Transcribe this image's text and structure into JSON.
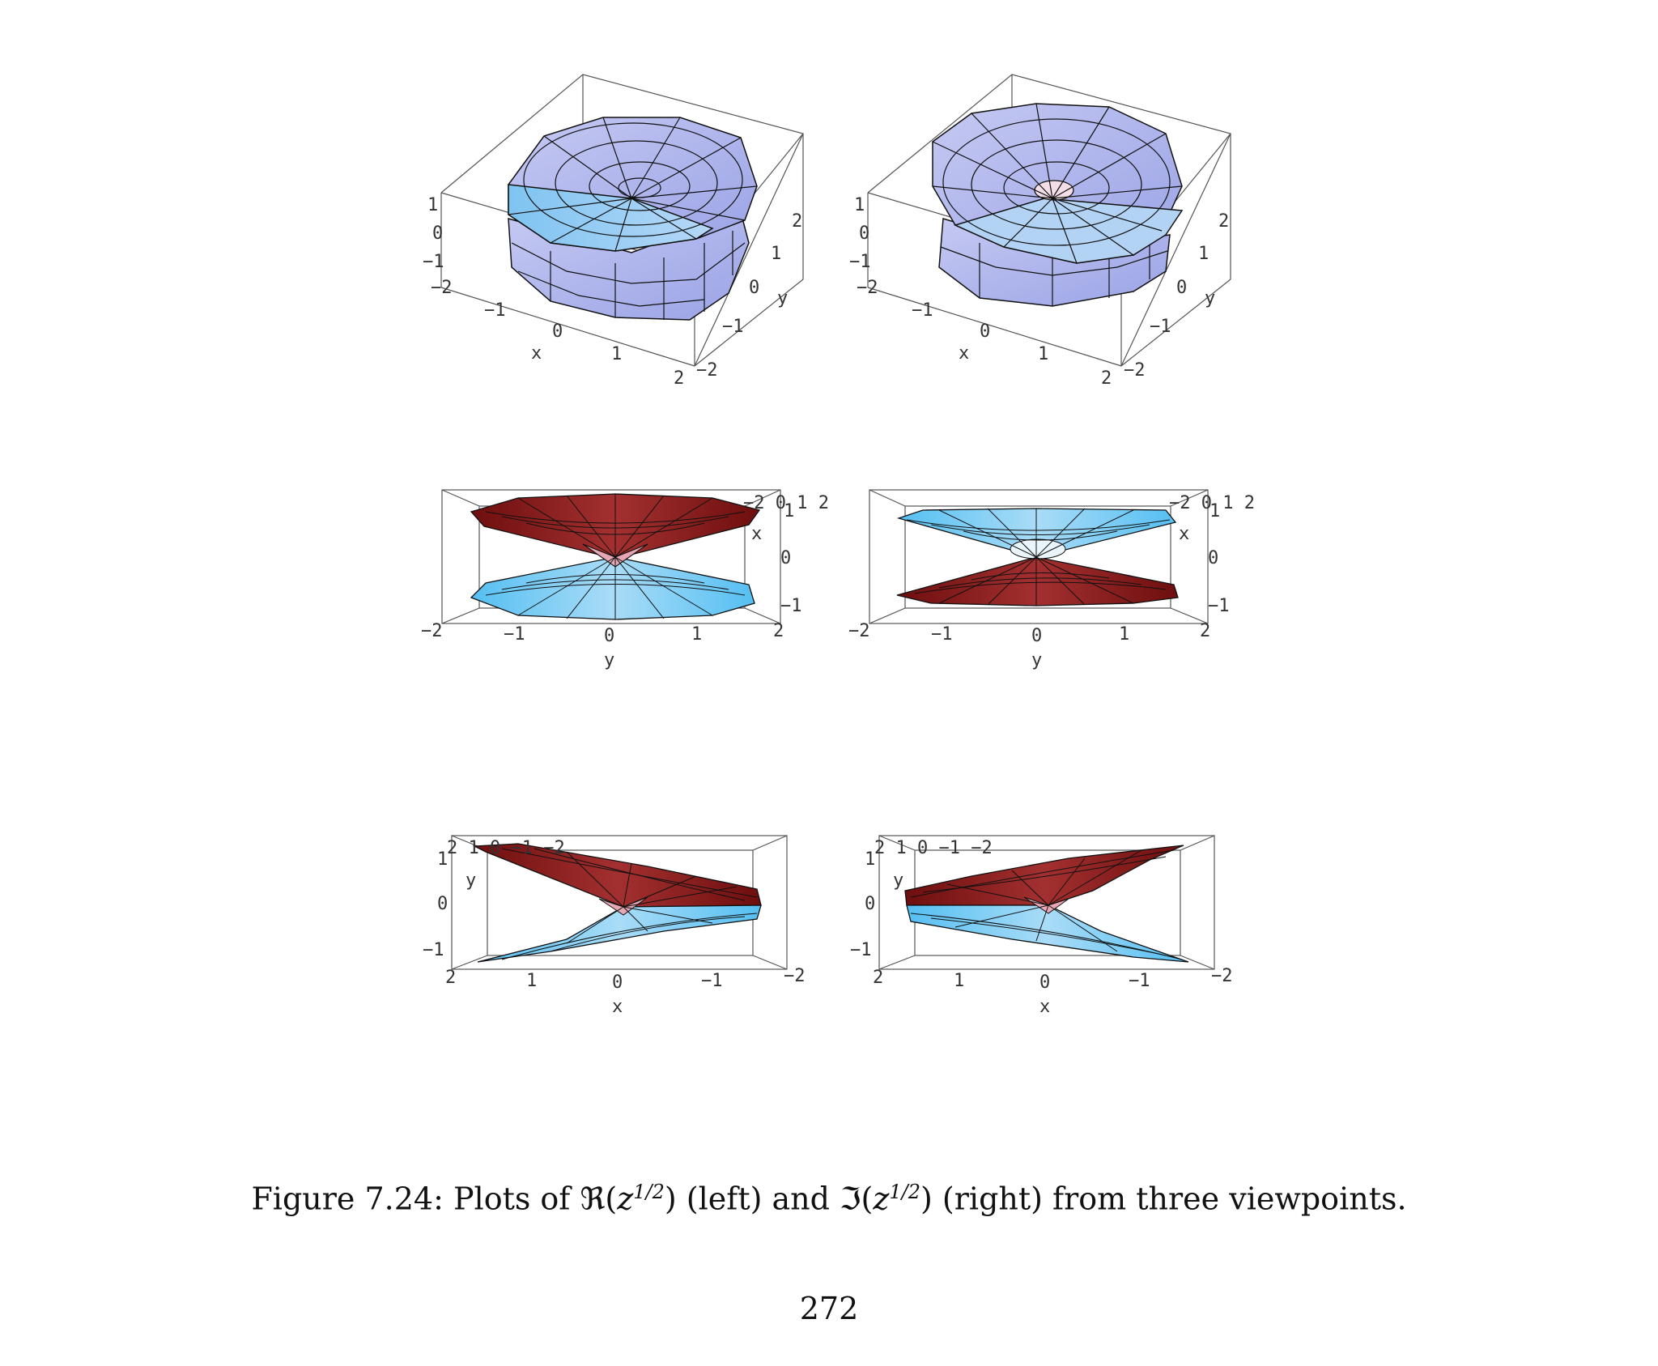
{
  "figure": {
    "panels": [
      {
        "id": "re-view1",
        "function": "real",
        "view": "oblique",
        "z_ticks": [
          "1",
          "0",
          "−1"
        ],
        "x_ticks": [
          "−2",
          "−1",
          "0",
          "1",
          "2"
        ],
        "y_ticks": [
          "−2",
          "−1",
          "0",
          "1",
          "2"
        ],
        "x_label": "x",
        "y_label": "y"
      },
      {
        "id": "im-view1",
        "function": "imag",
        "view": "oblique",
        "z_ticks": [
          "1",
          "0",
          "−1"
        ],
        "x_ticks": [
          "−2",
          "−1",
          "0",
          "1",
          "2"
        ],
        "y_ticks": [
          "−2",
          "−1",
          "0",
          "1",
          "2"
        ],
        "x_label": "x",
        "y_label": "y"
      },
      {
        "id": "re-view2",
        "function": "real",
        "view": "side-y",
        "z_ticks": [
          "1",
          "0",
          "−1"
        ],
        "h_ticks": [
          "−2",
          "−1",
          "0",
          "1",
          "2"
        ],
        "h_label": "y",
        "corner_label": "x",
        "corner_ticks": "−2 0 1 2"
      },
      {
        "id": "im-view2",
        "function": "imag",
        "view": "side-y",
        "z_ticks": [
          "1",
          "0",
          "−1"
        ],
        "h_ticks": [
          "−2",
          "−1",
          "0",
          "1",
          "2"
        ],
        "h_label": "y",
        "corner_label": "x",
        "corner_ticks": "−2 0 1 2"
      },
      {
        "id": "re-view3",
        "function": "real",
        "view": "side-x",
        "z_ticks": [
          "1",
          "0",
          "−1"
        ],
        "h_ticks": [
          "2",
          "1",
          "0",
          "−1",
          "−2"
        ],
        "h_label": "x",
        "corner_label": "y",
        "corner_ticks": "2 1 0 −1 −2"
      },
      {
        "id": "im-view3",
        "function": "imag",
        "view": "side-x",
        "z_ticks": [
          "1",
          "0",
          "−1"
        ],
        "h_ticks": [
          "2",
          "1",
          "0",
          "−1",
          "−2"
        ],
        "h_label": "x",
        "corner_label": "y",
        "corner_ticks": "2 1 0 −1 −2"
      }
    ],
    "caption": {
      "prefix": "Figure 7.24: Plots of ℜ",
      "z": "z",
      "exp": "1/2",
      "mid": " (left) and ℑ",
      "suffix": " (right) from three viewpoints."
    },
    "page_number": "272"
  },
  "colors": {
    "lavender": "#a9b0ea",
    "lightblue": "#8fc8f2",
    "cyan": "#63c8f5",
    "darkred": "#7d1414",
    "pink": "#e8a7b4",
    "edge": "#111111",
    "box": "#555555"
  }
}
